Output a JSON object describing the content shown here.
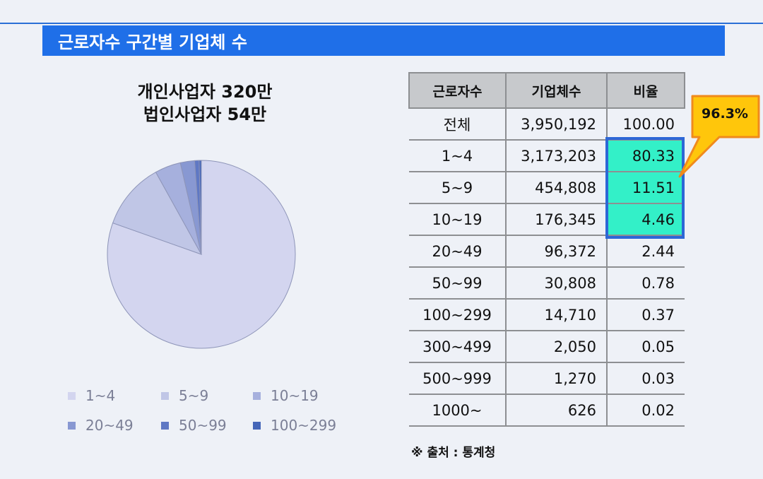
{
  "header": {
    "title": "근로자수 구간별 기업체 수"
  },
  "chart_title_lines": [
    "개인사업자 320만",
    "법인사업자 54만"
  ],
  "table": {
    "headers": [
      "근로자수",
      "기업체수",
      "비율"
    ],
    "rows": [
      [
        "전체",
        "3,950,192",
        "100.00"
      ],
      [
        "1~4",
        "3,173,203",
        "80.33"
      ],
      [
        "5~9",
        "454,808",
        "11.51"
      ],
      [
        "10~19",
        "176,345",
        "4.46"
      ],
      [
        "20~49",
        "96,372",
        "2.44"
      ],
      [
        "50~99",
        "30,808",
        "0.78"
      ],
      [
        "100~299",
        "14,710",
        "0.37"
      ],
      [
        "300~499",
        "2,050",
        "0.05"
      ],
      [
        "500~999",
        "1,270",
        "0.03"
      ],
      [
        "1000~",
        "626",
        "0.02"
      ]
    ],
    "highlight_color": "#33f0c8",
    "highlight_border": "#2d67d6"
  },
  "callout": {
    "text": "96.3%",
    "fill": "#ffc60b",
    "border": "#f08a1c"
  },
  "source_note": "※ 출처 : 통계청",
  "chart_data": {
    "type": "pie",
    "title": "",
    "categories": [
      "1~4",
      "5~9",
      "10~19",
      "20~49",
      "50~99",
      "100~299"
    ],
    "values": [
      80.33,
      11.51,
      4.46,
      2.44,
      0.78,
      0.37
    ],
    "colors": [
      "#d3d5ef",
      "#c0c6e6",
      "#a6b0dd",
      "#8898d2",
      "#5f78c4",
      "#4566b8"
    ],
    "legend_position": "bottom"
  }
}
